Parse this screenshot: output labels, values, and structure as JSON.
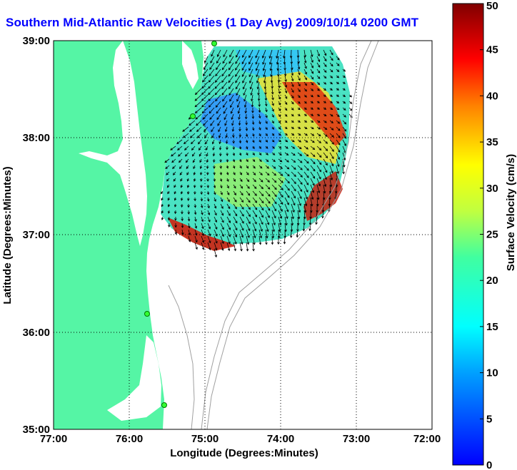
{
  "title": "Southern Mid-Atlantic Raw Velocities (1 Day Avg) 2009/10/14 0200 GMT",
  "x_axis": {
    "label": "Longitude (Degrees:Minutes)",
    "ticks": [
      "77:00",
      "76:00",
      "75:00",
      "74:00",
      "73:00",
      "72:00"
    ]
  },
  "y_axis": {
    "label": "Latitude (Degrees:Minutes)",
    "ticks": [
      "39:00",
      "38:00",
      "37:00",
      "36:00",
      "35:00"
    ]
  },
  "colorbar": {
    "label": "Surface Velocity (cm/s)",
    "ticks": [
      "50",
      "45",
      "40",
      "35",
      "30",
      "25",
      "20",
      "15",
      "10",
      "5",
      "0"
    ],
    "min": 0,
    "max": 50
  },
  "colors": {
    "land": "#55f5a5",
    "title": "#0000ff",
    "bathymetry": "#a0a0a0"
  }
}
